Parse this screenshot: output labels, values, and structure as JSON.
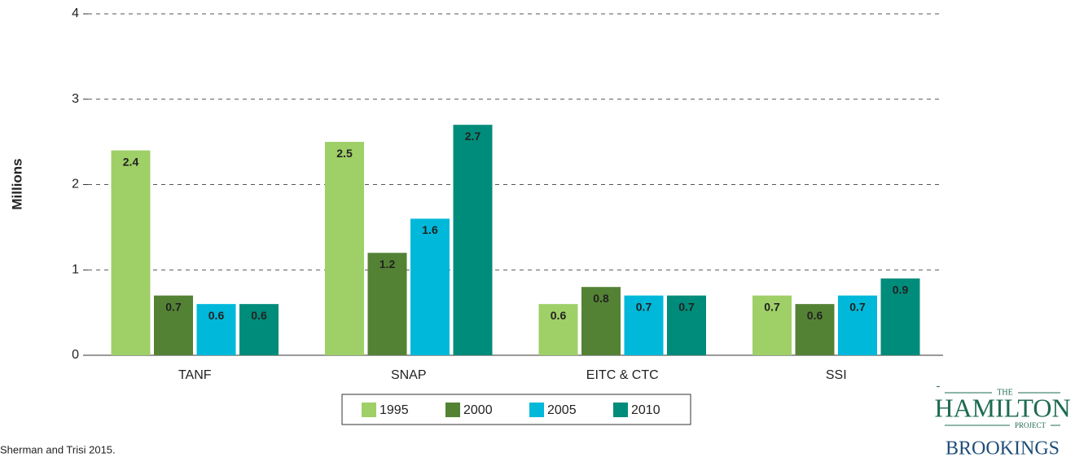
{
  "chart_data": {
    "type": "bar",
    "ylabel": "Millions",
    "categories": [
      "TANF",
      "SNAP",
      "EITC & CTC",
      "SSI"
    ],
    "series": [
      {
        "name": "1995",
        "color": "#9fcf67",
        "values": [
          2.4,
          2.5,
          0.6,
          0.7
        ]
      },
      {
        "name": "2000",
        "color": "#548235",
        "values": [
          0.7,
          1.2,
          0.8,
          0.6
        ]
      },
      {
        "name": "2005",
        "color": "#00b8d9",
        "values": [
          0.6,
          1.6,
          0.7,
          0.7
        ]
      },
      {
        "name": "2010",
        "color": "#008c7a",
        "values": [
          0.6,
          2.7,
          0.7,
          0.9
        ]
      }
    ],
    "ylim": [
      0,
      4
    ],
    "yticks": [
      0,
      1,
      2,
      3,
      4
    ],
    "grid": true,
    "legend": "bottom",
    "source": "Sherman and Trisi 2015."
  },
  "logo": {
    "the": "THE",
    "name": "HAMILTON",
    "project": "PROJECT",
    "org": "BROOKINGS"
  }
}
